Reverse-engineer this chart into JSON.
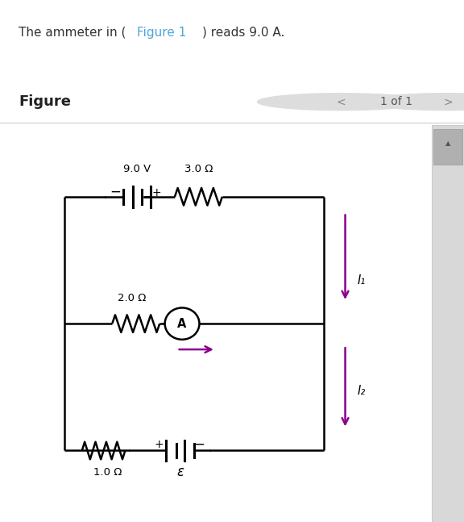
{
  "bg_color": "#ffffff",
  "header_bg": "#e8f4f8",
  "figure_label": "Figure",
  "page_label": "1 of 1",
  "labels": {
    "battery_top": "9.0 V",
    "resistor_top": "3.0 Ω",
    "resistor_mid": "2.0 Ω",
    "resistor_bot": "1.0 Ω",
    "battery_bot": "ε",
    "I1": "I₁",
    "I2": "I₂"
  },
  "arrow_color": "#8B008B",
  "line_color": "#000000",
  "link_color": "#4da6d9"
}
